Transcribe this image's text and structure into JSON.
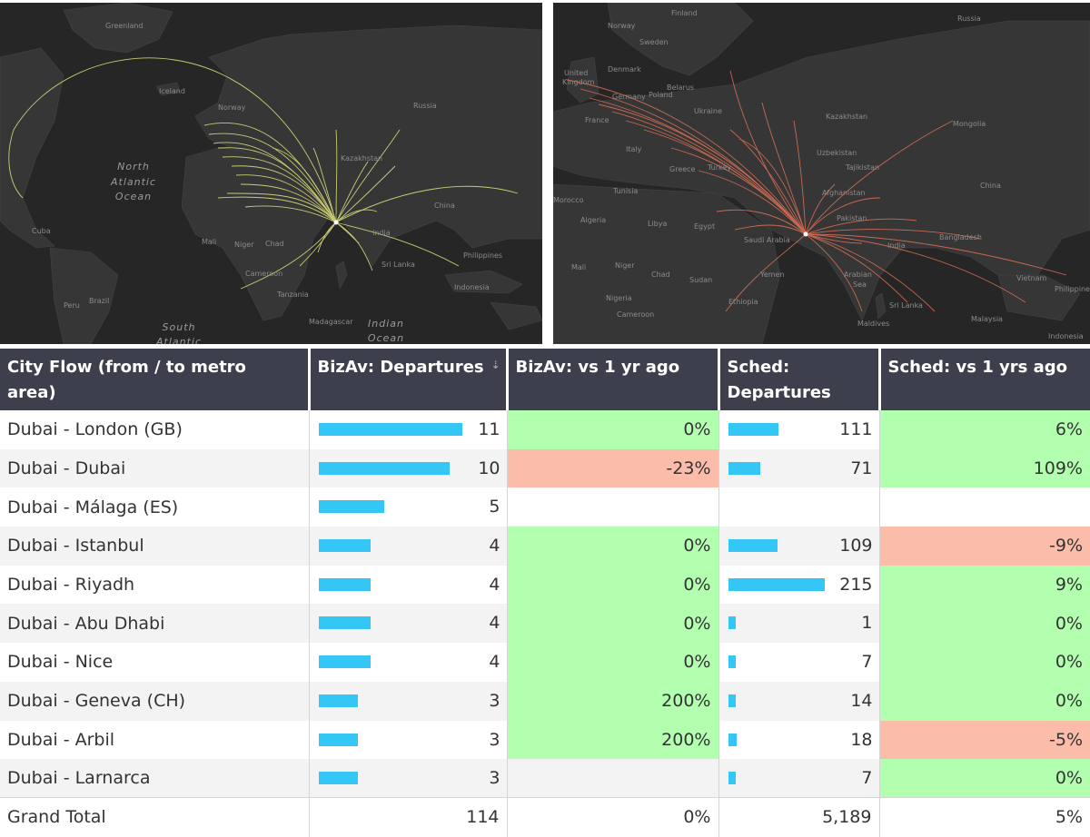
{
  "colors": {
    "map_bg": "#262626",
    "bizav_flow": "#d9dc7a",
    "sched_flow": "#e07256",
    "header_bg": "#3d3f4c",
    "bar": "#34c6f4",
    "positive": "#b2ffb0",
    "negative": "#fbbcaa"
  },
  "maps": {
    "left": {
      "labels": {
        "greenland": "Greenland",
        "iceland": "Iceland",
        "russia": "Russia",
        "norway": "Norway",
        "ocean_north": "North",
        "ocean_atlantic": "Atlantic",
        "ocean_ocean": "Ocean",
        "kazakhstan": "Kazakhstan",
        "cuba": "Cuba",
        "mali": "Mali",
        "niger": "Niger",
        "chad": "Chad",
        "india": "India",
        "china": "China",
        "philippines": "Philippines",
        "cameroon": "Cameroon",
        "tanzania": "Tanzania",
        "sri_lanka": "Sri Lanka",
        "indonesia": "Indonesia",
        "madagascar": "Madagascar",
        "brazil": "Brazil",
        "peru": "Peru",
        "ocean_south": "South",
        "ocean_atlantic2": "Atlantic",
        "ocean_indian": "Indian",
        "ocean_ocean2": "Ocean"
      }
    },
    "right": {
      "labels": {
        "finland": "Finland",
        "norway": "Norway",
        "russia": "Russia",
        "sweden": "Sweden",
        "united": "United",
        "kingdom": "Kingdom",
        "denmark": "Denmark",
        "belarus": "Belarus",
        "germany": "Germany",
        "poland": "Poland",
        "ukraine": "Ukraine",
        "france": "France",
        "kazakhstan": "Kazakhstan",
        "mongolia": "Mongolia",
        "italy": "Italy",
        "uzbekistan": "Uzbekistan",
        "greece": "Greece",
        "turkey": "Turkey",
        "tajikistan": "Tajikistan",
        "morocco": "Morocco",
        "tunisia": "Tunisia",
        "afghanistan": "Afghanistan",
        "china": "China",
        "algeria": "Algeria",
        "libya": "Libya",
        "egypt": "Egypt",
        "pakistan": "Pakistan",
        "saudi_arabia": "Saudi Arabia",
        "india": "India",
        "bangladesh": "Bangladesh",
        "mali": "Mali",
        "niger": "Niger",
        "chad": "Chad",
        "sudan": "Sudan",
        "yemen": "Yemen",
        "vietnam": "Vietnam",
        "nigeria": "Nigeria",
        "ethiopia": "Ethiopia",
        "arabian_sea": "Arabian",
        "sea": "Sea",
        "sri_lanka": "Sri Lanka",
        "philippines": "Philippine",
        "cameroon": "Cameroon",
        "malaysia": "Malaysia",
        "maldives": "Maldives",
        "indonesia": "Indonesia"
      }
    }
  },
  "table": {
    "headers": {
      "city_flow": "City Flow (from / to metro area)",
      "bizav_departures": "BizAv: Departures",
      "bizav_vs": "BizAv: vs 1 yr ago",
      "sched_departures": "Sched: Departures",
      "sched_vs": "Sched: vs 1 yrs ago"
    },
    "rows": [
      {
        "city": "Dubai - London (GB)",
        "bizav_dep": "11",
        "bizav_dep_value": 11,
        "bizav_vs": "0%",
        "bizav_vs_status": "good",
        "sched_dep": "111",
        "sched_dep_value": 111,
        "sched_vs": "6%",
        "sched_vs_status": "good"
      },
      {
        "city": "Dubai - Dubai",
        "bizav_dep": "10",
        "bizav_dep_value": 10,
        "bizav_vs": "-23%",
        "bizav_vs_status": "bad",
        "sched_dep": "71",
        "sched_dep_value": 71,
        "sched_vs": "109%",
        "sched_vs_status": "good"
      },
      {
        "city": "Dubai - Málaga (ES)",
        "bizav_dep": "5",
        "bizav_dep_value": 5,
        "bizav_vs": "",
        "bizav_vs_status": "none",
        "sched_dep": "",
        "sched_dep_value": 0,
        "sched_vs": "",
        "sched_vs_status": "none"
      },
      {
        "city": "Dubai - Istanbul",
        "bizav_dep": "4",
        "bizav_dep_value": 4,
        "bizav_vs": "0%",
        "bizav_vs_status": "good",
        "sched_dep": "109",
        "sched_dep_value": 109,
        "sched_vs": "-9%",
        "sched_vs_status": "bad"
      },
      {
        "city": "Dubai - Riyadh",
        "bizav_dep": "4",
        "bizav_dep_value": 4,
        "bizav_vs": "0%",
        "bizav_vs_status": "good",
        "sched_dep": "215",
        "sched_dep_value": 215,
        "sched_vs": "9%",
        "sched_vs_status": "good"
      },
      {
        "city": "Dubai - Abu Dhabi",
        "bizav_dep": "4",
        "bizav_dep_value": 4,
        "bizav_vs": "0%",
        "bizav_vs_status": "good",
        "sched_dep": "1",
        "sched_dep_value": 1,
        "sched_vs": "0%",
        "sched_vs_status": "good"
      },
      {
        "city": "Dubai - Nice",
        "bizav_dep": "4",
        "bizav_dep_value": 4,
        "bizav_vs": "0%",
        "bizav_vs_status": "good",
        "sched_dep": "7",
        "sched_dep_value": 7,
        "sched_vs": "0%",
        "sched_vs_status": "good"
      },
      {
        "city": "Dubai - Geneva (CH)",
        "bizav_dep": "3",
        "bizav_dep_value": 3,
        "bizav_vs": "200%",
        "bizav_vs_status": "good",
        "sched_dep": "14",
        "sched_dep_value": 14,
        "sched_vs": "0%",
        "sched_vs_status": "good"
      },
      {
        "city": "Dubai - Arbil",
        "bizav_dep": "3",
        "bizav_dep_value": 3,
        "bizav_vs": "200%",
        "bizav_vs_status": "good",
        "sched_dep": "18",
        "sched_dep_value": 18,
        "sched_vs": "-5%",
        "sched_vs_status": "bad"
      },
      {
        "city": "Dubai - Larnarca",
        "bizav_dep": "3",
        "bizav_dep_value": 3,
        "bizav_vs": "",
        "bizav_vs_status": "none",
        "sched_dep": "7",
        "sched_dep_value": 7,
        "sched_vs": "0%",
        "sched_vs_status": "good"
      }
    ],
    "total": {
      "label": "Grand Total",
      "bizav_dep": "114",
      "bizav_vs": "0%",
      "sched_dep": "5,189",
      "sched_vs": "5%"
    }
  }
}
